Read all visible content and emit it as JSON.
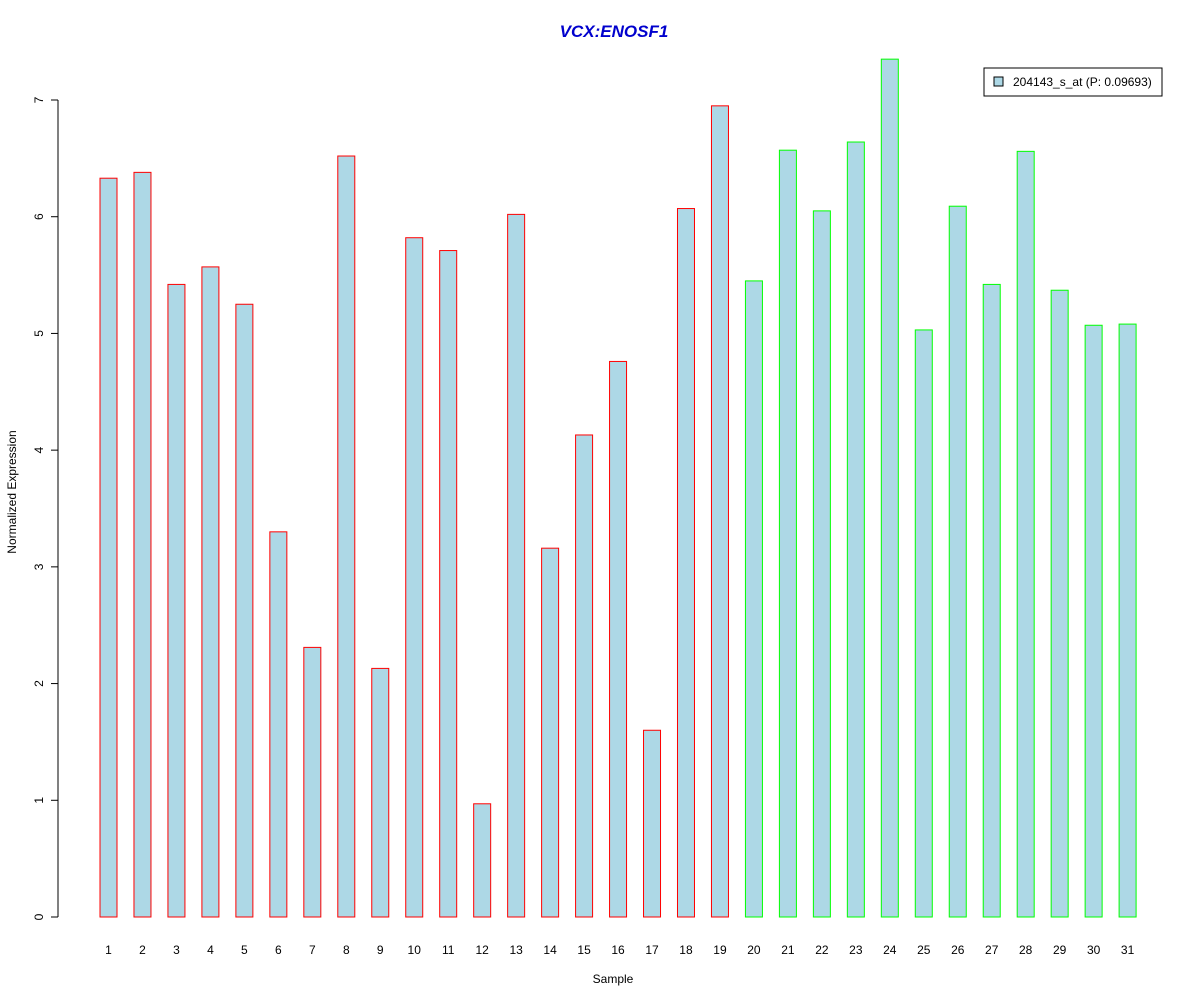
{
  "chart_data": {
    "type": "bar",
    "title": "VCX:ENOSF1",
    "xlabel": "Sample",
    "ylabel": "Normalized Expression",
    "ylim": [
      0,
      7.35
    ],
    "yticks": [
      0,
      1,
      2,
      3,
      4,
      5,
      6,
      7
    ],
    "grid": false,
    "legend": {
      "placement": "top-right",
      "entries": [
        "204143_s_at (P: 0.09693)"
      ]
    },
    "categories": [
      "1",
      "2",
      "3",
      "4",
      "5",
      "6",
      "7",
      "8",
      "9",
      "10",
      "11",
      "12",
      "13",
      "14",
      "15",
      "16",
      "17",
      "18",
      "19",
      "20",
      "21",
      "22",
      "23",
      "24",
      "25",
      "26",
      "27",
      "28",
      "29",
      "30",
      "31"
    ],
    "series": [
      {
        "name": "204143_s_at (P: 0.09693)",
        "values": [
          6.33,
          6.38,
          5.42,
          5.57,
          5.25,
          3.3,
          2.31,
          6.52,
          2.13,
          5.82,
          5.71,
          0.97,
          6.02,
          3.16,
          4.13,
          4.76,
          1.6,
          6.07,
          6.95,
          5.45,
          6.57,
          6.05,
          6.64,
          7.35,
          5.03,
          6.09,
          5.42,
          6.56,
          5.37,
          5.07,
          5.08
        ],
        "groups": [
          1,
          1,
          1,
          1,
          1,
          1,
          1,
          1,
          1,
          1,
          1,
          1,
          1,
          1,
          1,
          1,
          1,
          1,
          1,
          2,
          2,
          2,
          2,
          2,
          2,
          2,
          2,
          2,
          2,
          2,
          2
        ]
      }
    ],
    "colors": {
      "fill": "#add8e6",
      "group1_border": "#ff0000",
      "group2_border": "#00ff00",
      "title": "#0000cd",
      "axis": "#000000"
    }
  }
}
